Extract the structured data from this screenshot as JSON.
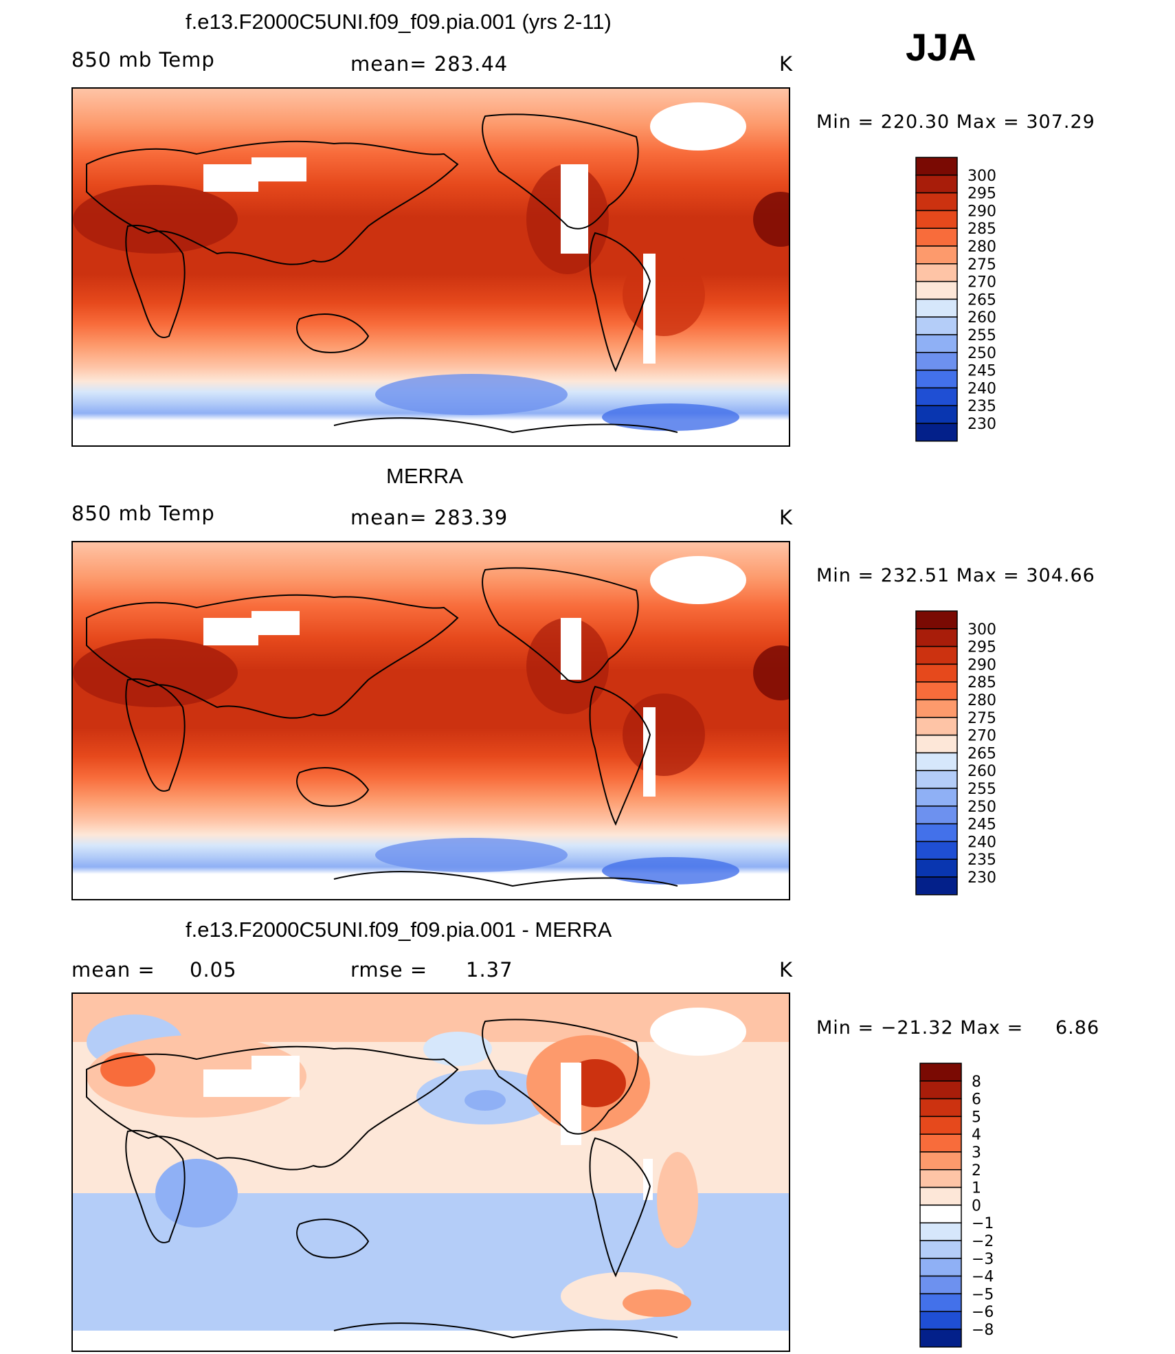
{
  "season": "JJA",
  "panels": [
    {
      "id": "model",
      "title": "f.e13.F2000C5UNI.f09_f09.pia.001 (yrs 2-11)",
      "left_label": "850 mb Temp",
      "center_label": "mean= 283.44",
      "units": "K",
      "minmax": "Min = 220.30 Max = 307.29",
      "colorbar": {
        "labels": [
          "300",
          "295",
          "290",
          "285",
          "280",
          "275",
          "270",
          "265",
          "260",
          "255",
          "250",
          "245",
          "240",
          "235",
          "230"
        ],
        "colors": [
          "#7a0a03",
          "#a81d0a",
          "#cc3210",
          "#e6491c",
          "#f86c3b",
          "#fd9a6c",
          "#fec4a6",
          "#fde7d8",
          "#d6e7fb",
          "#b4cdf8",
          "#8fb0f5",
          "#6d91ef",
          "#4371ea",
          "#1f4fd4",
          "#0936b0",
          "#03208a"
        ]
      }
    },
    {
      "id": "obs",
      "title": "MERRA",
      "left_label": "850 mb Temp",
      "center_label": "mean= 283.39",
      "units": "K",
      "minmax": "Min = 232.51 Max = 304.66",
      "colorbar": {
        "labels": [
          "300",
          "295",
          "290",
          "285",
          "280",
          "275",
          "270",
          "265",
          "260",
          "255",
          "250",
          "245",
          "240",
          "235",
          "230"
        ],
        "colors": [
          "#7a0a03",
          "#a81d0a",
          "#cc3210",
          "#e6491c",
          "#f86c3b",
          "#fd9a6c",
          "#fec4a6",
          "#fde7d8",
          "#d6e7fb",
          "#b4cdf8",
          "#8fb0f5",
          "#6d91ef",
          "#4371ea",
          "#1f4fd4",
          "#0936b0",
          "#03208a"
        ]
      }
    },
    {
      "id": "diff",
      "title": "f.e13.F2000C5UNI.f09_f09.pia.001 - MERRA",
      "left_label": "mean =",
      "left_value": "0.05",
      "center_label": "rmse =",
      "center_value": "1.37",
      "units": "K",
      "minmax": "Min = −21.32 Max =",
      "minmax_value": "6.86",
      "colorbar": {
        "labels": [
          "8",
          "6",
          "5",
          "4",
          "3",
          "2",
          "1",
          "0",
          "−1",
          "−2",
          "−3",
          "−4",
          "−5",
          "−6",
          "−8"
        ],
        "colors": [
          "#7a0a03",
          "#a81d0a",
          "#cc3210",
          "#e6491c",
          "#f86c3b",
          "#fd9a6c",
          "#fec4a6",
          "#fde7d8",
          "#ffffff",
          "#d6e7fb",
          "#b4cdf8",
          "#8fb0f5",
          "#6d91ef",
          "#4371ea",
          "#1f4fd4",
          "#03208a"
        ]
      }
    }
  ]
}
